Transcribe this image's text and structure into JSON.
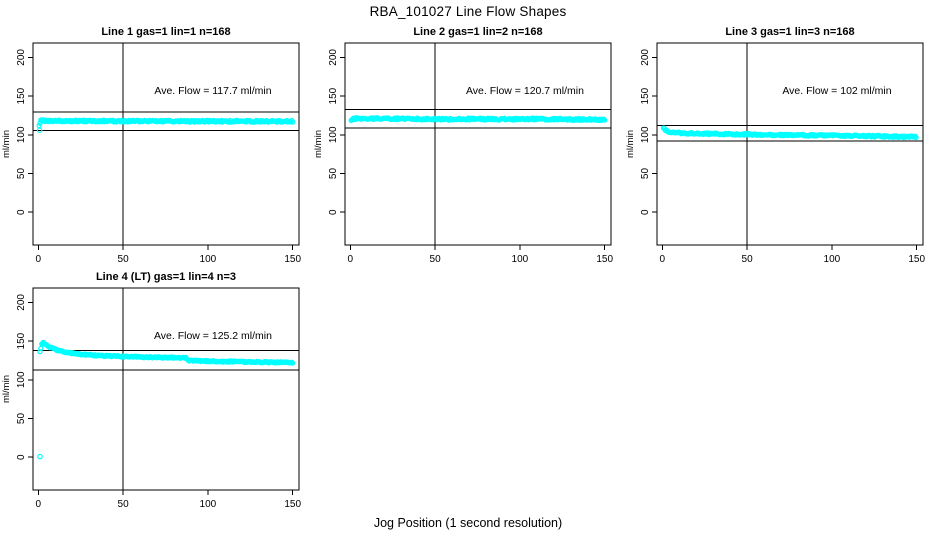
{
  "figure": {
    "title": "RBA_101027  Line Flow Shapes",
    "xlabel": "Jog Position (1 second resolution)",
    "ylabel": "ml/min"
  },
  "colors": {
    "points": "#00FFFF",
    "lines": "#000000",
    "background": "#FFFFFF",
    "text": "#000000"
  },
  "chart_data": [
    {
      "type": "scatter",
      "title": "Line 1 gas=1 lin=1 n=168",
      "annotation": "Ave. Flow =  117.7  ml/min",
      "ave_flow": 117.7,
      "hlines": [
        129.5,
        105.9
      ],
      "vline_x": 50,
      "xticks": [
        0,
        50,
        100,
        150
      ],
      "yticks": [
        0,
        50,
        100,
        150,
        200
      ],
      "xlim": [
        -3.1,
        153.7
      ],
      "ylim": [
        -42.3,
        218.6
      ],
      "annotation_pos": [
        103,
        157
      ],
      "profile": [
        [
          0.5,
          113
        ],
        [
          1.5,
          118.8
        ],
        [
          3,
          118.3
        ],
        [
          10,
          118
        ],
        [
          40,
          117.8
        ],
        [
          80,
          117.6
        ],
        [
          120,
          117.5
        ],
        [
          150,
          117.3
        ]
      ],
      "outliers": [
        [
          0.8,
          106
        ]
      ],
      "noise": 1.2,
      "step": 0.5,
      "seed": 7
    },
    {
      "type": "scatter",
      "title": "Line 2 gas=1 lin=2 n=168",
      "annotation": "Ave. Flow =  120.7  ml/min",
      "ave_flow": 120.7,
      "hlines": [
        132.8,
        108.6
      ],
      "vline_x": 50,
      "xticks": [
        0,
        50,
        100,
        150
      ],
      "yticks": [
        0,
        50,
        100,
        150,
        200
      ],
      "xlim": [
        -3.1,
        153.7
      ],
      "ylim": [
        -42.3,
        218.6
      ],
      "annotation_pos": [
        103,
        157
      ],
      "profile": [
        [
          0.5,
          119.5
        ],
        [
          2,
          121
        ],
        [
          15,
          120.9
        ],
        [
          40,
          120.6
        ],
        [
          55,
          120
        ],
        [
          70,
          120.5
        ],
        [
          90,
          120.2
        ],
        [
          110,
          120.4
        ],
        [
          130,
          120
        ],
        [
          150,
          119.6
        ]
      ],
      "outliers": [],
      "noise": 1.2,
      "step": 0.5,
      "seed": 11
    },
    {
      "type": "scatter",
      "title": "Line 3 gas=1 lin=3 n=168",
      "annotation": "Ave. Flow =  102  ml/min",
      "ave_flow": 102,
      "hlines": [
        112.2,
        91.8
      ],
      "vline_x": 50,
      "xticks": [
        0,
        50,
        100,
        150
      ],
      "yticks": [
        0,
        50,
        100,
        150,
        200
      ],
      "xlim": [
        -3.1,
        153.7
      ],
      "ylim": [
        -42.3,
        218.6
      ],
      "annotation_pos": [
        103,
        157
      ],
      "profile": [
        [
          0.7,
          108.5
        ],
        [
          2,
          105.5
        ],
        [
          5,
          103.3
        ],
        [
          12,
          102.2
        ],
        [
          30,
          101.3
        ],
        [
          60,
          100.2
        ],
        [
          90,
          99.3
        ],
        [
          120,
          98.4
        ],
        [
          150,
          97.4
        ]
      ],
      "outliers": [],
      "noise": 1.1,
      "step": 0.5,
      "seed": 13
    },
    {
      "type": "scatter",
      "title": "Line 4 (LT) gas=1 lin=4 n=3",
      "annotation": "Ave. Flow =  125.2  ml/min",
      "ave_flow": 125.2,
      "hlines": [
        137.7,
        112.7
      ],
      "vline_x": 50,
      "xticks": [
        0,
        50,
        100,
        150
      ],
      "yticks": [
        0,
        50,
        100,
        150,
        200
      ],
      "xlim": [
        -3.1,
        153.7
      ],
      "ylim": [
        -42.3,
        218.6
      ],
      "annotation_pos": [
        103,
        157
      ],
      "profile": [
        [
          1,
          136
        ],
        [
          2,
          146
        ],
        [
          3,
          147.5
        ],
        [
          5,
          144.5
        ],
        [
          8,
          141
        ],
        [
          12,
          137.8
        ],
        [
          18,
          135
        ],
        [
          25,
          133
        ],
        [
          35,
          131.3
        ],
        [
          50,
          130.2
        ],
        [
          65,
          129.3
        ],
        [
          80,
          128.6
        ],
        [
          87,
          128.2
        ],
        [
          88.5,
          124.8
        ],
        [
          100,
          124.2
        ],
        [
          115,
          123.5
        ],
        [
          130,
          123
        ],
        [
          150,
          122.2
        ]
      ],
      "outliers": [
        [
          1,
          0.8
        ]
      ],
      "noise": 0.9,
      "step": 0.5,
      "seed": 17
    }
  ]
}
